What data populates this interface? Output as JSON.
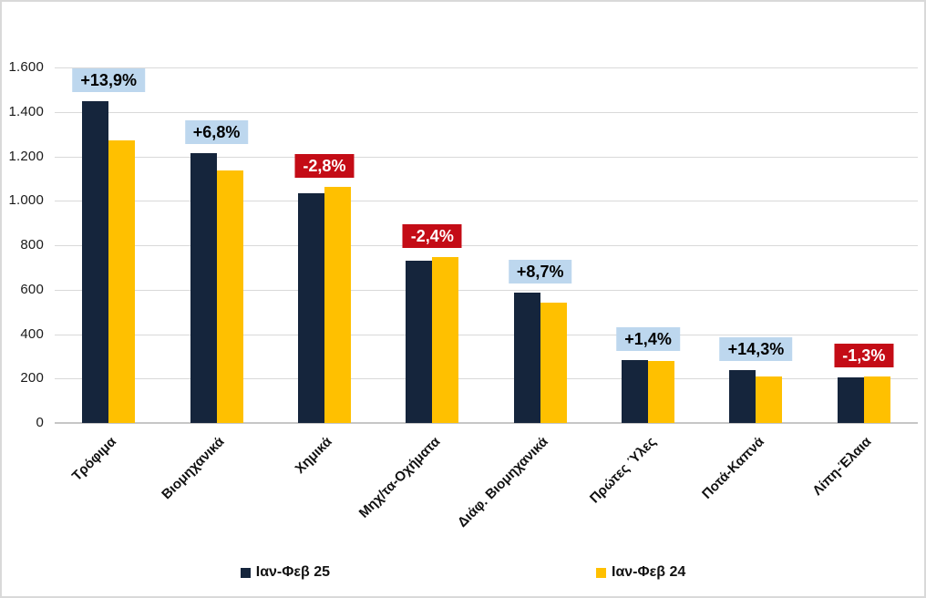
{
  "chart_data": {
    "type": "bar",
    "title": "",
    "categories": [
      "Τρόφιμα",
      "Βιομηχανικά",
      "Χημικά",
      "Μηχ/τα-Οχήματα",
      "Διάφ. Βιομηχανικά",
      "Πρώτες Ύλες",
      "Ποτά-Καπνά",
      "Λίπη-Έλαια"
    ],
    "series": [
      {
        "name": "Ιαν-Φεβ 25",
        "color": "#15253C",
        "values": [
          1450,
          1215,
          1032,
          730,
          588,
          284,
          240,
          206
        ]
      },
      {
        "name": "Ιαν-Φεβ 24",
        "color": "#FFC000",
        "values": [
          1273,
          1138,
          1062,
          748,
          541,
          280,
          210,
          209
        ]
      }
    ],
    "change_labels": [
      {
        "text": "+13,9%",
        "sign": "positive"
      },
      {
        "text": "+6,8%",
        "sign": "positive"
      },
      {
        "text": "-2,8%",
        "sign": "negative"
      },
      {
        "text": "-2,4%",
        "sign": "negative"
      },
      {
        "text": "+8,7%",
        "sign": "positive"
      },
      {
        "text": "+1,4%",
        "sign": "positive"
      },
      {
        "text": "+14,3%",
        "sign": "positive"
      },
      {
        "text": "-1,3%",
        "sign": "negative"
      }
    ],
    "y_axis": {
      "min": 0,
      "max": 1600,
      "step": 200,
      "tick_values": [
        1600,
        1400,
        1200,
        1000,
        800,
        600,
        400,
        200,
        0
      ],
      "tick_labels": [
        "1.600",
        "1.400",
        "1.200",
        "1.000",
        "800",
        "600",
        "400",
        "200",
        "0"
      ]
    },
    "grid": true,
    "legend_position": "bottom",
    "styles": {
      "positive_label_bg": "#BDD7EE",
      "positive_label_text": "#000000",
      "negative_label_bg": "#C40C16",
      "negative_label_text": "#FFFFFF",
      "gridline_color": "#D9D9D9",
      "axis_line_color": "#C6C6C6",
      "frame_border_color": "#D9D9D9",
      "background": "#FFFFFF"
    }
  }
}
